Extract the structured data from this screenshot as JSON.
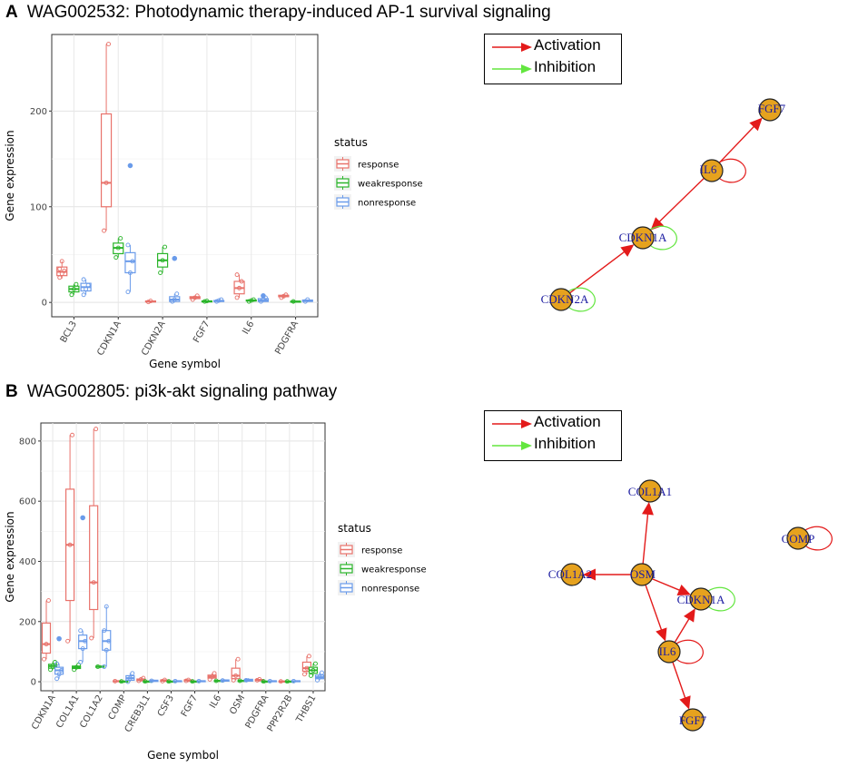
{
  "panels": [
    {
      "letter": "A",
      "title": "WAG002532: Photodynamic therapy-induced AP-1 survival signaling"
    },
    {
      "letter": "B",
      "title": "WAG002805: pi3k-akt signaling pathway"
    }
  ],
  "colors": {
    "response": "#e8726b",
    "weakresponse": "#2bb52b",
    "nonresponse": "#6a9bea",
    "node": "#e6a21e",
    "activation": "#e31a1a",
    "inhibition": "#63e63f"
  },
  "network_legend": {
    "activation": "Activation",
    "inhibition": "Inhibition"
  },
  "chart_data": [
    {
      "type": "box",
      "id": "A",
      "xlabel": "Gene symbol",
      "ylabel": "Gene expression",
      "ylim": [
        -15,
        280
      ],
      "yticks": [
        0,
        100,
        200
      ],
      "legend_title": "status",
      "legend_entries": [
        "response",
        "weakresponse",
        "nonresponse"
      ],
      "categories": [
        "BCL3",
        "CDKN1A",
        "CDKN2A",
        "FGF7",
        "IL6",
        "PDGFRA"
      ],
      "series": [
        {
          "name": "response",
          "boxes": [
            {
              "min": 25,
              "q1": 28,
              "median": 32,
              "q3": 37,
              "max": 43,
              "pts": [
                26,
                30,
                33,
                35,
                43
              ],
              "out": []
            },
            {
              "min": 75,
              "q1": 100,
              "median": 125,
              "q3": 197,
              "max": 270,
              "pts": [
                75,
                125,
                270
              ],
              "out": []
            },
            {
              "min": 0,
              "q1": 0.5,
              "median": 1,
              "q3": 1.5,
              "max": 2,
              "pts": [
                0.5,
                1.5
              ],
              "out": []
            },
            {
              "min": 3,
              "q1": 4,
              "median": 5,
              "q3": 6,
              "max": 7,
              "pts": [
                3,
                5,
                7
              ],
              "out": []
            },
            {
              "min": 5,
              "q1": 9,
              "median": 15,
              "q3": 22,
              "max": 29,
              "pts": [
                5,
                15,
                22,
                29
              ],
              "out": []
            },
            {
              "min": 5,
              "q1": 6,
              "median": 6.5,
              "q3": 7.5,
              "max": 8,
              "pts": [
                5,
                6.5,
                8
              ],
              "out": []
            }
          ]
        },
        {
          "name": "weakresponse",
          "boxes": [
            {
              "min": 8,
              "q1": 11,
              "median": 14,
              "q3": 17,
              "max": 19,
              "pts": [
                8,
                14,
                19
              ],
              "out": []
            },
            {
              "min": 47,
              "q1": 51,
              "median": 57,
              "q3": 62,
              "max": 67,
              "pts": [
                47,
                57,
                67
              ],
              "out": []
            },
            {
              "min": 31,
              "q1": 37,
              "median": 44,
              "q3": 51,
              "max": 58,
              "pts": [
                31,
                44,
                58
              ],
              "out": []
            },
            {
              "min": 0.5,
              "q1": 1,
              "median": 1.2,
              "q3": 1.5,
              "max": 2,
              "pts": [
                1,
                1.5
              ],
              "out": []
            },
            {
              "min": 1,
              "q1": 1.5,
              "median": 2,
              "q3": 2.5,
              "max": 3,
              "pts": [
                1,
                2,
                3
              ],
              "out": []
            },
            {
              "min": 0.5,
              "q1": 0.8,
              "median": 1,
              "q3": 1.2,
              "max": 1.5,
              "pts": [
                1
              ],
              "out": []
            }
          ]
        },
        {
          "name": "nonresponse",
          "boxes": [
            {
              "min": 8,
              "q1": 12,
              "median": 16,
              "q3": 20,
              "max": 24,
              "pts": [
                8,
                14,
                18,
                24
              ],
              "out": []
            },
            {
              "min": 11,
              "q1": 31,
              "median": 43,
              "q3": 52,
              "max": 60,
              "pts": [
                11,
                31,
                43,
                60
              ],
              "out": [
                143
              ]
            },
            {
              "min": 0,
              "q1": 1,
              "median": 3,
              "q3": 6,
              "max": 9,
              "pts": [
                1,
                3,
                9
              ],
              "out": [
                46
              ]
            },
            {
              "min": 0.5,
              "q1": 1,
              "median": 1.5,
              "q3": 2,
              "max": 3,
              "pts": [
                1,
                2,
                3
              ],
              "out": []
            },
            {
              "min": 0.5,
              "q1": 1,
              "median": 2,
              "q3": 4,
              "max": 5,
              "pts": [
                1,
                3,
                5
              ],
              "out": [
                7
              ]
            },
            {
              "min": 0.5,
              "q1": 1,
              "median": 2,
              "q3": 2.5,
              "max": 3,
              "pts": [
                1,
                3
              ],
              "out": []
            }
          ]
        }
      ]
    },
    {
      "type": "box",
      "id": "B",
      "xlabel": "Gene symbol",
      "ylabel": "Gene expression",
      "ylim": [
        -30,
        860
      ],
      "yticks": [
        0,
        200,
        400,
        600,
        800
      ],
      "legend_title": "status",
      "legend_entries": [
        "response",
        "weakresponse",
        "nonresponse"
      ],
      "categories": [
        "CDKN1A",
        "COL1A1",
        "COL1A2",
        "COMP",
        "CREB3L1",
        "CSF3",
        "FGF7",
        "IL6",
        "OSM",
        "PDGFRA",
        "PPP2R2B",
        "THBS1"
      ],
      "series": [
        {
          "name": "response",
          "boxes": [
            {
              "min": 75,
              "q1": 95,
              "median": 125,
              "q3": 195,
              "max": 270,
              "pts": [
                75,
                125,
                270
              ],
              "out": []
            },
            {
              "min": 135,
              "q1": 270,
              "median": 455,
              "q3": 640,
              "max": 820,
              "pts": [
                135,
                455,
                820
              ],
              "out": []
            },
            {
              "min": 145,
              "q1": 240,
              "median": 330,
              "q3": 585,
              "max": 840,
              "pts": [
                145,
                330,
                840
              ],
              "out": []
            },
            {
              "min": 0,
              "q1": 1,
              "median": 2,
              "q3": 3,
              "max": 4,
              "pts": [
                2
              ],
              "out": []
            },
            {
              "min": 2,
              "q1": 4,
              "median": 6,
              "q3": 9,
              "max": 12,
              "pts": [
                3,
                8,
                12
              ],
              "out": []
            },
            {
              "min": 1,
              "q1": 2,
              "median": 4,
              "q3": 6,
              "max": 8,
              "pts": [
                2,
                6
              ],
              "out": []
            },
            {
              "min": 2,
              "q1": 3,
              "median": 5,
              "q3": 6,
              "max": 7,
              "pts": [
                3,
                6
              ],
              "out": []
            },
            {
              "min": 8,
              "q1": 12,
              "median": 17,
              "q3": 22,
              "max": 28,
              "pts": [
                8,
                17,
                28
              ],
              "out": []
            },
            {
              "min": 5,
              "q1": 10,
              "median": 20,
              "q3": 45,
              "max": 75,
              "pts": [
                5,
                20,
                75
              ],
              "out": []
            },
            {
              "min": 4,
              "q1": 5,
              "median": 6,
              "q3": 7,
              "max": 8,
              "pts": [
                5,
                8
              ],
              "out": []
            },
            {
              "min": 0,
              "q1": 0.5,
              "median": 1,
              "q3": 2,
              "max": 3,
              "pts": [
                1
              ],
              "out": []
            },
            {
              "min": 25,
              "q1": 35,
              "median": 45,
              "q3": 65,
              "max": 85,
              "pts": [
                25,
                45,
                85
              ],
              "out": []
            }
          ]
        },
        {
          "name": "weakresponse",
          "boxes": [
            {
              "min": 40,
              "q1": 45,
              "median": 52,
              "q3": 58,
              "max": 65,
              "pts": [
                40,
                52,
                65
              ],
              "out": []
            },
            {
              "min": 40,
              "q1": 44,
              "median": 48,
              "q3": 52,
              "max": 56,
              "pts": [
                40,
                48,
                56
              ],
              "out": []
            },
            {
              "min": 45,
              "q1": 48,
              "median": 50,
              "q3": 52,
              "max": 55,
              "pts": [
                50
              ],
              "out": []
            },
            {
              "min": 0,
              "q1": 0.5,
              "median": 1,
              "q3": 1.5,
              "max": 2,
              "pts": [
                1
              ],
              "out": []
            },
            {
              "min": 0,
              "q1": 0.5,
              "median": 1,
              "q3": 1.5,
              "max": 2,
              "pts": [
                1
              ],
              "out": []
            },
            {
              "min": 0,
              "q1": 0.5,
              "median": 1,
              "q3": 1.5,
              "max": 2,
              "pts": [
                1
              ],
              "out": []
            },
            {
              "min": 0,
              "q1": 0.5,
              "median": 1,
              "q3": 1.5,
              "max": 2,
              "pts": [
                1
              ],
              "out": []
            },
            {
              "min": 1,
              "q1": 2,
              "median": 3,
              "q3": 4,
              "max": 5,
              "pts": [
                3
              ],
              "out": []
            },
            {
              "min": 1,
              "q1": 2,
              "median": 3,
              "q3": 4,
              "max": 5,
              "pts": [
                3
              ],
              "out": []
            },
            {
              "min": 0,
              "q1": 0.5,
              "median": 1,
              "q3": 1.5,
              "max": 2,
              "pts": [
                1
              ],
              "out": []
            },
            {
              "min": 0,
              "q1": 0.5,
              "median": 1,
              "q3": 1.5,
              "max": 2,
              "pts": [
                1
              ],
              "out": []
            },
            {
              "min": 20,
              "q1": 28,
              "median": 38,
              "q3": 48,
              "max": 60,
              "pts": [
                20,
                38,
                60
              ],
              "out": []
            }
          ]
        },
        {
          "name": "nonresponse",
          "boxes": [
            {
              "min": 10,
              "q1": 25,
              "median": 38,
              "q3": 48,
              "max": 60,
              "pts": [
                10,
                25,
                38,
                60
              ],
              "out": [
                143
              ]
            },
            {
              "min": 65,
              "q1": 110,
              "median": 135,
              "q3": 155,
              "max": 170,
              "pts": [
                65,
                110,
                135,
                170
              ],
              "out": [
                545
              ]
            },
            {
              "min": 50,
              "q1": 105,
              "median": 135,
              "q3": 170,
              "max": 250,
              "pts": [
                50,
                105,
                135,
                170,
                250
              ],
              "out": []
            },
            {
              "min": 0,
              "q1": 5,
              "median": 12,
              "q3": 20,
              "max": 28,
              "pts": [
                0,
                12,
                28
              ],
              "out": []
            },
            {
              "min": 0,
              "q1": 1,
              "median": 3,
              "q3": 5,
              "max": 7,
              "pts": [
                3
              ],
              "out": []
            },
            {
              "min": 0,
              "q1": 1,
              "median": 2,
              "q3": 3,
              "max": 4,
              "pts": [
                2
              ],
              "out": []
            },
            {
              "min": 0,
              "q1": 1,
              "median": 2,
              "q3": 3,
              "max": 5,
              "pts": [
                2
              ],
              "out": []
            },
            {
              "min": 0,
              "q1": 2,
              "median": 4,
              "q3": 6,
              "max": 8,
              "pts": [
                4
              ],
              "out": []
            },
            {
              "min": 0,
              "q1": 2,
              "median": 5,
              "q3": 8,
              "max": 12,
              "pts": [
                5
              ],
              "out": []
            },
            {
              "min": 0,
              "q1": 1,
              "median": 2,
              "q3": 3,
              "max": 4,
              "pts": [
                2
              ],
              "out": []
            },
            {
              "min": 0,
              "q1": 1,
              "median": 2,
              "q3": 3,
              "max": 4,
              "pts": [
                2
              ],
              "out": []
            },
            {
              "min": 5,
              "q1": 10,
              "median": 15,
              "q3": 22,
              "max": 30,
              "pts": [
                5,
                15,
                30
              ],
              "out": []
            }
          ]
        }
      ]
    }
  ],
  "networks": [
    {
      "id": "A",
      "nodes": [
        {
          "label": "FGF7"
        },
        {
          "label": "IL6"
        },
        {
          "label": "CDKN1A"
        },
        {
          "label": "CDKN2A"
        }
      ],
      "edges": [
        {
          "from": "IL6",
          "to": "FGF7",
          "type": "activation"
        },
        {
          "from": "IL6",
          "to": "CDKN1A",
          "type": "activation"
        },
        {
          "from": "CDKN2A",
          "to": "CDKN1A",
          "type": "activation"
        },
        {
          "from": "IL6",
          "to": "IL6",
          "type": "activation"
        },
        {
          "from": "CDKN1A",
          "to": "CDKN1A",
          "type": "inhibition"
        },
        {
          "from": "CDKN2A",
          "to": "CDKN2A",
          "type": "inhibition"
        }
      ]
    },
    {
      "id": "B",
      "nodes": [
        {
          "label": "COL1A1"
        },
        {
          "label": "COMP"
        },
        {
          "label": "COL1A2"
        },
        {
          "label": "OSM"
        },
        {
          "label": "CDKN1A"
        },
        {
          "label": "IL6"
        },
        {
          "label": "FGF7"
        }
      ],
      "edges": [
        {
          "from": "OSM",
          "to": "COL1A1",
          "type": "activation"
        },
        {
          "from": "OSM",
          "to": "COL1A2",
          "type": "activation"
        },
        {
          "from": "OSM",
          "to": "CDKN1A",
          "type": "activation"
        },
        {
          "from": "OSM",
          "to": "IL6",
          "type": "activation"
        },
        {
          "from": "IL6",
          "to": "CDKN1A",
          "type": "activation"
        },
        {
          "from": "IL6",
          "to": "FGF7",
          "type": "activation"
        },
        {
          "from": "IL6",
          "to": "IL6",
          "type": "activation"
        },
        {
          "from": "COMP",
          "to": "COMP",
          "type": "activation"
        },
        {
          "from": "CDKN1A",
          "to": "CDKN1A",
          "type": "inhibition"
        }
      ]
    }
  ]
}
